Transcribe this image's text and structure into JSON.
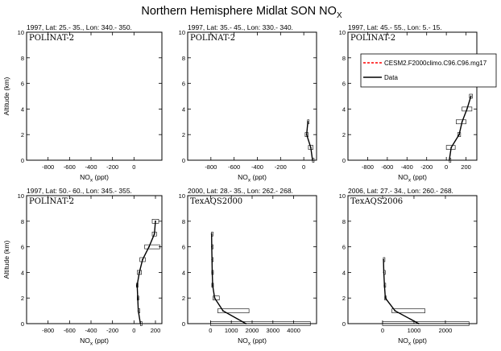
{
  "figure": {
    "title": "Northern Hemisphere Midlat SON NO",
    "title_sub": "X"
  },
  "chart_data": [
    {
      "type": "line",
      "title": "1997, Lat: 25.- 35., Lon: 340.- 350.",
      "campaign": "POLINAT-2",
      "xlabel": "NO",
      "xlabel_sub": "x",
      "xlabel_unit": " (ppt)",
      "ylabel": "Altitude (km)",
      "xlim": [
        -1000,
        260
      ],
      "ylim": [
        0,
        10
      ],
      "xticks": [
        -800,
        -600,
        -400,
        -200,
        0
      ],
      "yticks": [
        0,
        2,
        4,
        6,
        8,
        10
      ],
      "show_ylabel": true,
      "data": [],
      "model": []
    },
    {
      "type": "line",
      "title": "1997, Lat: 35.- 45., Lon: 330.- 340.",
      "campaign": "POLINAT-2",
      "xlabel": "NO",
      "xlabel_sub": "x",
      "xlabel_unit": " (ppt)",
      "ylabel": "",
      "xlim": [
        -1000,
        110
      ],
      "ylim": [
        0,
        10
      ],
      "xticks": [
        -800,
        -600,
        -400,
        -200,
        0
      ],
      "yticks": [
        0,
        2,
        4,
        6,
        8,
        10
      ],
      "show_ylabel": false,
      "data": [
        {
          "x": 75,
          "y": 0,
          "xmin": 75,
          "xmax": 75
        },
        {
          "x": 60,
          "y": 1,
          "xmin": 40,
          "xmax": 80
        },
        {
          "x": 25,
          "y": 2,
          "xmin": 12,
          "xmax": 38
        },
        {
          "x": 35,
          "y": 3,
          "xmin": 32,
          "xmax": 38
        }
      ],
      "model": []
    },
    {
      "type": "line",
      "title": "1997, Lat: 45.- 55., Lon: 5.- 15.",
      "campaign": "POLINAT-2",
      "xlabel": "NO",
      "xlabel_sub": "x",
      "xlabel_unit": " (ppt)",
      "ylabel": "",
      "xlim": [
        -1000,
        310
      ],
      "ylim": [
        0,
        10
      ],
      "xticks": [
        -800,
        -600,
        -400,
        -200,
        0,
        200
      ],
      "yticks": [
        0,
        2,
        4,
        6,
        8,
        10
      ],
      "show_ylabel": false,
      "legend": {
        "location": "top-right",
        "entries": [
          {
            "label": "CESM2.F2000climo.C96.C96.mg17",
            "color": "#ff0000",
            "dash": true
          },
          {
            "label": "Data",
            "color": "#000000",
            "dash": false
          }
        ]
      },
      "data": [
        {
          "x": 30,
          "y": 0,
          "xmin": 30,
          "xmax": 30
        },
        {
          "x": 50,
          "y": 1,
          "xmin": 0,
          "xmax": 90
        },
        {
          "x": 130,
          "y": 2,
          "xmin": 115,
          "xmax": 145
        },
        {
          "x": 160,
          "y": 3,
          "xmin": 100,
          "xmax": 200
        },
        {
          "x": 210,
          "y": 4,
          "xmin": 160,
          "xmax": 260
        },
        {
          "x": 250,
          "y": 5,
          "xmin": 235,
          "xmax": 265
        }
      ],
      "model": []
    },
    {
      "type": "line",
      "title": "1997, Lat: 50.- 60., Lon: 345.- 355.",
      "campaign": "POLINAT-2",
      "xlabel": "NO",
      "xlabel_sub": "x",
      "xlabel_unit": " (ppt)",
      "ylabel": "Altitude (km)",
      "xlim": [
        -1000,
        260
      ],
      "ylim": [
        0,
        10
      ],
      "xticks": [
        -800,
        -600,
        -400,
        -200,
        0,
        200
      ],
      "yticks": [
        0,
        2,
        4,
        6,
        8,
        10
      ],
      "show_ylabel": true,
      "data": [
        {
          "x": 60,
          "y": 0,
          "xmin": 60,
          "xmax": 60
        },
        {
          "x": 40,
          "y": 1,
          "xmin": 40,
          "xmax": 40
        },
        {
          "x": 35,
          "y": 2,
          "xmin": 30,
          "xmax": 40
        },
        {
          "x": 30,
          "y": 3,
          "xmin": 22,
          "xmax": 38
        },
        {
          "x": 50,
          "y": 4,
          "xmin": 30,
          "xmax": 70
        },
        {
          "x": 80,
          "y": 5,
          "xmin": 55,
          "xmax": 105
        },
        {
          "x": 140,
          "y": 6,
          "xmin": 100,
          "xmax": 240
        },
        {
          "x": 190,
          "y": 7,
          "xmin": 170,
          "xmax": 210
        },
        {
          "x": 200,
          "y": 8,
          "xmin": 170,
          "xmax": 230
        }
      ],
      "model": []
    },
    {
      "type": "line",
      "title": "2000, Lat: 28.- 35., Lon: 262.- 268.",
      "campaign": "TexAQS2000",
      "xlabel": "NO",
      "xlabel_sub": "x",
      "xlabel_unit": " (ppt)",
      "ylabel": "",
      "xlim": [
        -1100,
        5100
      ],
      "ylim": [
        0,
        10
      ],
      "xticks": [
        0,
        1000,
        2000,
        3000,
        4000
      ],
      "yticks": [
        0,
        2,
        4,
        6,
        8,
        10
      ],
      "show_ylabel": false,
      "data": [
        {
          "x": 1700,
          "y": 0,
          "xmin": 0,
          "xmax": 4800
        },
        {
          "x": 600,
          "y": 1,
          "xmin": 350,
          "xmax": 1850
        },
        {
          "x": 200,
          "y": 2,
          "xmin": 120,
          "xmax": 420
        },
        {
          "x": 100,
          "y": 3,
          "xmin": 60,
          "xmax": 140
        },
        {
          "x": 80,
          "y": 4,
          "xmin": 60,
          "xmax": 100
        },
        {
          "x": 70,
          "y": 5,
          "xmin": 55,
          "xmax": 85
        },
        {
          "x": 60,
          "y": 6,
          "xmin": 50,
          "xmax": 70
        },
        {
          "x": 50,
          "y": 7,
          "xmin": 45,
          "xmax": 55
        }
      ],
      "model": []
    },
    {
      "type": "line",
      "title": "2006, Lat: 27.- 34., Lon: 260.- 268.",
      "campaign": "TexAQS2006",
      "xlabel": "NO",
      "xlabel_sub": "x",
      "xlabel_unit": " (ppt)",
      "ylabel": "",
      "xlim": [
        -1100,
        3000
      ],
      "ylim": [
        0,
        10
      ],
      "xticks": [
        0,
        1000,
        2000
      ],
      "yticks": [
        0,
        2,
        4,
        6,
        8,
        10
      ],
      "show_ylabel": false,
      "data": [
        {
          "x": 1150,
          "y": 0,
          "xmin": 0,
          "xmax": 2750
        },
        {
          "x": 400,
          "y": 1,
          "xmin": 300,
          "xmax": 1350
        },
        {
          "x": 90,
          "y": 2,
          "xmin": 70,
          "xmax": 110
        },
        {
          "x": 60,
          "y": 3,
          "xmin": 50,
          "xmax": 70
        },
        {
          "x": 40,
          "y": 4,
          "xmin": 35,
          "xmax": 45
        },
        {
          "x": 30,
          "y": 5,
          "xmin": 25,
          "xmax": 35
        }
      ],
      "model": []
    }
  ]
}
